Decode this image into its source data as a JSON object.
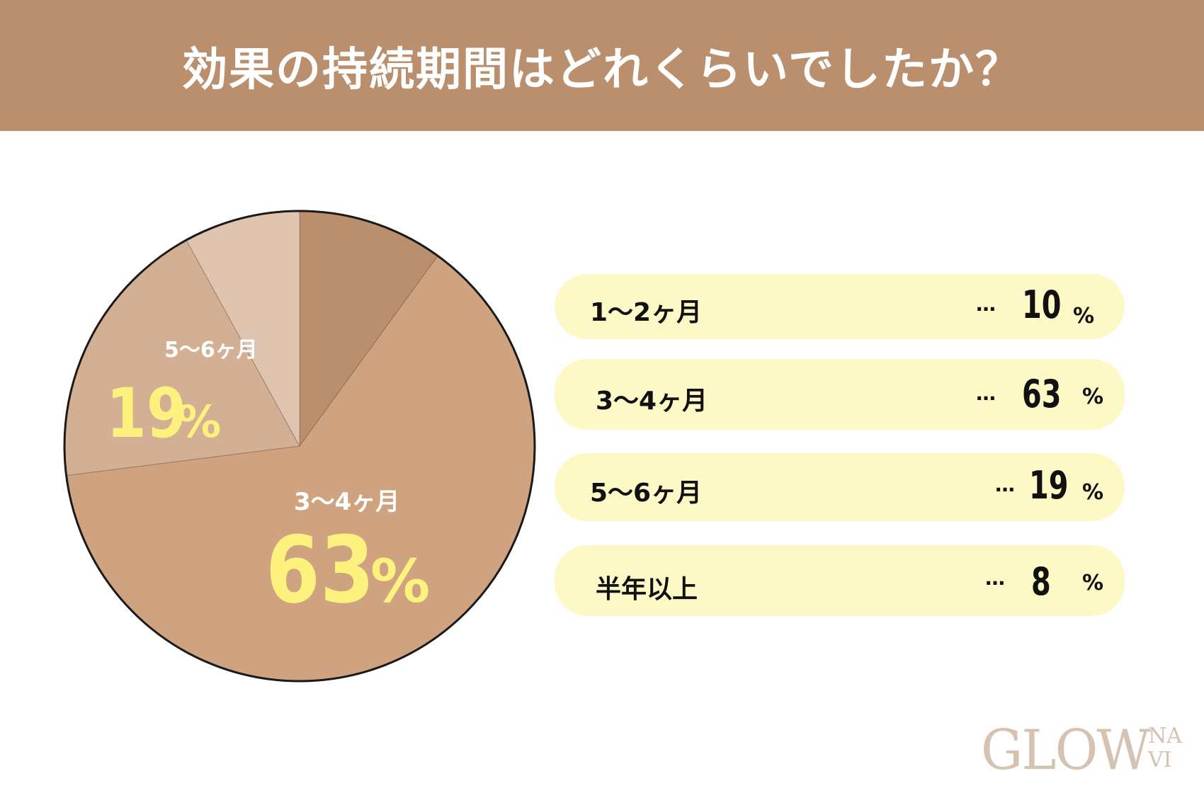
{
  "header": {
    "title": "効果の持続期間はどれくらいでしたか？"
  },
  "chart_data": {
    "type": "pie",
    "title": "効果の持続期間はどれくらいでしたか？",
    "unit": "%",
    "slices": [
      {
        "label": "1〜2ヶ月",
        "value": 10,
        "color": "#b98f6e"
      },
      {
        "label": "3〜4ヶ月",
        "value": 63,
        "color": "#d0a380"
      },
      {
        "label": "5〜6ヶ月",
        "value": 19,
        "color": "#d3af93"
      },
      {
        "label": "半年以上",
        "value": 8,
        "color": "#dfc4b0"
      }
    ],
    "direction": "clockwise-from-top"
  },
  "pie_labels": [
    {
      "category": "3〜4ヶ月",
      "value": "63",
      "unit": "%"
    },
    {
      "category": "5〜6ヶ月",
      "value": "19",
      "unit": "%"
    }
  ],
  "legend": {
    "rows": [
      {
        "label": "1〜2ヶ月",
        "dots": "…",
        "value": "10",
        "unit": "%"
      },
      {
        "label": "3〜4ヶ月",
        "dots": "…",
        "value": "63",
        "unit": "%"
      },
      {
        "label": "5〜6ヶ月",
        "dots": "…",
        "value": "19",
        "unit": "%"
      },
      {
        "label": "半年以上",
        "dots": "…",
        "value": "8",
        "unit": "%"
      }
    ]
  },
  "logo": {
    "main": "GLOW",
    "sub_top": "NA",
    "sub_bottom": "VI"
  },
  "colors": {
    "header_bg": "#b98f6e",
    "legend_bg": "#fdf9c7",
    "highlight_text": "#fdf27e",
    "logo": "#d6c2b0"
  }
}
